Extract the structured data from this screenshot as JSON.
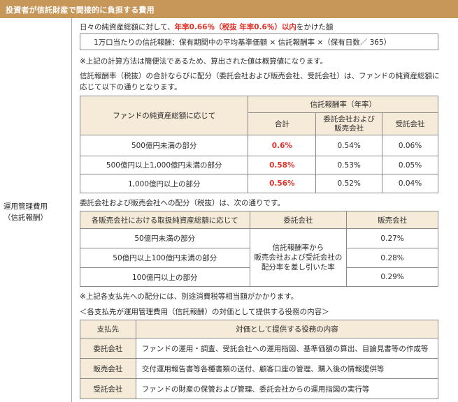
{
  "header": {
    "title": "投資者が信託財産で間接的に負担する費用"
  },
  "left": {
    "label_line1": "運用管理費用",
    "label_line2": "（信託報酬）"
  },
  "intro": {
    "text_before": "日々の純資産総額に対して、",
    "text_red": "年率0.66％（税抜 年率0.6％）以内",
    "text_after": "をかけた額"
  },
  "formula": "1万口当たりの信託報酬：保有期間中の平均基準価額 × 信託報酬率 ×（保有日数／ 365）",
  "note1": "※上記の計算方法は簡便法であるため、算出された値は概算値になります。",
  "para2_line1": "信託報酬率（税抜）の合計ならびに配分（委託会社および販売会社、受託会社）は、ファンドの純資産総額に",
  "para2_line2": "応じて以下の通りとなります。",
  "table1": {
    "col_head_left": "ファンドの純資産総額に応じて",
    "group_head": "信託報酬率（年率）",
    "sub_total": "合計",
    "sub_mgmt_line1": "委託会社および",
    "sub_mgmt_line2": "販売会社",
    "sub_trustee": "受託会社",
    "rows": [
      {
        "range": "500億円未満の部分",
        "total": "0.6%",
        "mgmt": "0.54%",
        "trustee": "0.06%"
      },
      {
        "range": "500億円以上1,000億円未満の部分",
        "total": "0.58%",
        "mgmt": "0.53%",
        "trustee": "0.05%"
      },
      {
        "range": "1,000億円以上の部分",
        "total": "0.56%",
        "mgmt": "0.52%",
        "trustee": "0.04%"
      }
    ]
  },
  "para3": "委託会社および販売会社への配分（税抜）は、次の通りです。",
  "table2": {
    "head_left": "各販売会社における取扱純資産総額に応じて",
    "head_mgmt": "委託会社",
    "head_dist": "販売会社",
    "merged_line1": "信託報酬率から",
    "merged_line2": "販売会社および受託会社の",
    "merged_line3": "配分率を差し引いた率",
    "rows": [
      {
        "range": "50億円未満の部分",
        "dist": "0.27%"
      },
      {
        "range": "50億円以上100億円未満の部分",
        "dist": "0.28%"
      },
      {
        "range": "100億円以上の部分",
        "dist": "0.29%"
      }
    ]
  },
  "note2": "※上記各支払先への配分には、別途消費税等相当額がかかります。",
  "para4": "＜各支払先が運用管理費用（信託報酬）の対価として提供する役務の内容＞",
  "table3": {
    "head_payee": "支払先",
    "head_service": "対価として提供する役務の内容",
    "rows": [
      {
        "payee": "委託会社",
        "service": "ファンドの運用・調査、受託会社への運用指図、基準価額の算出、目論見書等の作成等"
      },
      {
        "payee": "販売会社",
        "service": "交付運用報告書等各種書類の送付、顧客口座の管理、購入後の情報提供等"
      },
      {
        "payee": "受託会社",
        "service": "ファンドの財産の保管および管理、委託会社からの運用指図の実行等"
      }
    ]
  },
  "colors": {
    "header_bg": "#c7975a",
    "table_header_bg": "#f6ead8",
    "highlight_red": "#e2332a"
  }
}
